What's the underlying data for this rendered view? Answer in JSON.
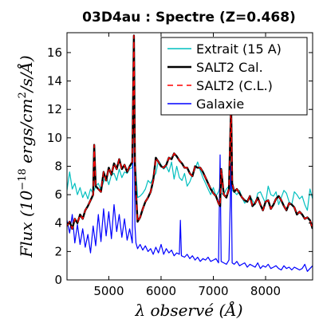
{
  "chart_data": {
    "type": "line",
    "title": "03D4au : Spectre (Z=0.468)",
    "xlabel": "λ observé (Å)",
    "ylabel": "Flux (10^-18 ergs/cm²/s/Å)",
    "ylabel_parts": {
      "pre": "Flux (10",
      "exp": "−18",
      "post": " ergs/cm",
      "exp2": "2",
      "post2": "/s/Å)"
    },
    "xlim": [
      4200,
      8900
    ],
    "ylim": [
      0,
      17.4
    ],
    "xticks": [
      5000,
      6000,
      7000,
      8000
    ],
    "yticks": [
      0,
      2,
      4,
      6,
      8,
      10,
      12,
      14,
      16
    ],
    "legend_position": "top-right",
    "series": [
      {
        "name": "Extrait (15 A)",
        "color": "#00bfbf",
        "style": "solid",
        "x": [
          4200,
          4250,
          4300,
          4350,
          4400,
          4450,
          4500,
          4550,
          4600,
          4650,
          4700,
          4750,
          4800,
          4850,
          4900,
          4950,
          5000,
          5050,
          5100,
          5150,
          5200,
          5250,
          5300,
          5350,
          5400,
          5450,
          5480,
          5500,
          5520,
          5550,
          5600,
          5650,
          5700,
          5750,
          5800,
          5850,
          5900,
          5950,
          6000,
          6050,
          6100,
          6150,
          6200,
          6250,
          6300,
          6350,
          6400,
          6450,
          6500,
          6550,
          6600,
          6650,
          6700,
          6750,
          6800,
          6850,
          6900,
          6950,
          7000,
          7050,
          7100,
          7130,
          7150,
          7200,
          7250,
          7300,
          7340,
          7360,
          7400,
          7450,
          7500,
          7550,
          7600,
          7650,
          7700,
          7750,
          7800,
          7850,
          7900,
          7950,
          8000,
          8050,
          8100,
          8150,
          8200,
          8250,
          8300,
          8350,
          8400,
          8450,
          8500,
          8550,
          8600,
          8650,
          8700,
          8750,
          8800,
          8850,
          8900
        ],
        "y": [
          6.3,
          7.6,
          6.4,
          6.8,
          6.0,
          6.5,
          5.8,
          6.2,
          5.7,
          6.4,
          6.1,
          6.6,
          6.8,
          6.3,
          6.9,
          7.3,
          6.7,
          7.4,
          7.5,
          7.0,
          7.8,
          7.2,
          7.6,
          7.5,
          7.8,
          7.9,
          16.5,
          8.2,
          7.6,
          5.8,
          5.9,
          6.1,
          6.4,
          7.0,
          6.8,
          7.2,
          7.5,
          8.4,
          8.1,
          7.8,
          8.0,
          7.6,
          8.3,
          7.1,
          8.0,
          7.2,
          7.0,
          7.5,
          6.6,
          6.9,
          7.4,
          7.8,
          8.3,
          7.7,
          7.2,
          6.8,
          6.4,
          6.0,
          6.5,
          5.9,
          6.2,
          6.6,
          6.1,
          6.0,
          6.4,
          6.6,
          12.3,
          6.3,
          6.2,
          6.0,
          6.3,
          5.8,
          5.4,
          5.6,
          5.9,
          5.6,
          5.3,
          6.1,
          6.2,
          5.8,
          5.4,
          6.6,
          6.0,
          5.9,
          6.2,
          5.3,
          5.8,
          6.3,
          6.1,
          5.5,
          5.3,
          6.2,
          6.0,
          5.7,
          5.9,
          5.3,
          4.9,
          6.4,
          5.7
        ]
      },
      {
        "name": "SALT2 Cal.",
        "color": "#000000",
        "style": "solid",
        "x": [
          4200,
          4250,
          4300,
          4350,
          4400,
          4450,
          4500,
          4550,
          4600,
          4650,
          4700,
          4720,
          4750,
          4800,
          4850,
          4900,
          4950,
          5000,
          5050,
          5100,
          5150,
          5200,
          5250,
          5300,
          5350,
          5400,
          5450,
          5480,
          5500,
          5520,
          5550,
          5600,
          5650,
          5700,
          5750,
          5800,
          5850,
          5900,
          5950,
          6000,
          6050,
          6100,
          6150,
          6200,
          6250,
          6300,
          6350,
          6400,
          6450,
          6500,
          6550,
          6600,
          6650,
          6700,
          6750,
          6800,
          6850,
          6900,
          6950,
          7000,
          7050,
          7100,
          7130,
          7150,
          7200,
          7250,
          7300,
          7340,
          7360,
          7400,
          7450,
          7500,
          7550,
          7600,
          7650,
          7700,
          7750,
          7800,
          7850,
          7900,
          7950,
          8000,
          8050,
          8100,
          8150,
          8200,
          8250,
          8300,
          8350,
          8400,
          8450,
          8500,
          8550,
          8600,
          8650,
          8700,
          8750,
          8800,
          8850,
          8900
        ],
        "y": [
          3.8,
          4.1,
          3.6,
          4.3,
          4.0,
          4.6,
          4.3,
          4.9,
          5.2,
          5.6,
          6.0,
          9.5,
          6.6,
          6.4,
          6.2,
          7.6,
          7.0,
          7.9,
          7.4,
          8.2,
          7.8,
          8.5,
          7.8,
          8.1,
          7.6,
          8.0,
          8.3,
          17.2,
          8.2,
          6.2,
          4.1,
          4.4,
          5.0,
          5.5,
          5.8,
          6.2,
          7.0,
          8.6,
          8.3,
          8.0,
          7.9,
          8.1,
          8.6,
          8.5,
          8.9,
          8.7,
          8.4,
          8.2,
          7.9,
          7.9,
          7.5,
          7.3,
          8.0,
          7.9,
          7.9,
          7.6,
          7.2,
          6.8,
          6.4,
          6.1,
          5.9,
          5.4,
          5.2,
          7.8,
          6.0,
          5.8,
          6.4,
          12.4,
          6.8,
          6.2,
          6.4,
          6.1,
          5.8,
          5.6,
          5.5,
          5.9,
          5.2,
          5.4,
          5.8,
          5.3,
          4.9,
          5.5,
          5.6,
          5.0,
          5.3,
          5.7,
          5.9,
          5.6,
          5.2,
          4.9,
          5.4,
          5.3,
          5.1,
          4.6,
          4.8,
          4.6,
          4.3,
          4.4,
          4.2,
          3.6
        ]
      },
      {
        "name": "SALT2 (C.L.)",
        "color": "#ff0000",
        "style": "dashed",
        "x": [
          4200,
          4250,
          4300,
          4350,
          4400,
          4450,
          4500,
          4550,
          4600,
          4650,
          4700,
          4720,
          4750,
          4800,
          4850,
          4900,
          4950,
          5000,
          5050,
          5100,
          5150,
          5200,
          5250,
          5300,
          5350,
          5400,
          5450,
          5480,
          5500,
          5520,
          5550,
          5600,
          5650,
          5700,
          5750,
          5800,
          5850,
          5900,
          5950,
          6000,
          6050,
          6100,
          6150,
          6200,
          6250,
          6300,
          6350,
          6400,
          6450,
          6500,
          6550,
          6600,
          6650,
          6700,
          6750,
          6800,
          6850,
          6900,
          6950,
          7000,
          7050,
          7100,
          7130,
          7150,
          7200,
          7250,
          7300,
          7340,
          7360,
          7400,
          7450,
          7500,
          7550,
          7600,
          7650,
          7700,
          7750,
          7800,
          7850,
          7900,
          7950,
          8000,
          8050,
          8100,
          8150,
          8200,
          8250,
          8300,
          8350,
          8400,
          8450,
          8500,
          8550,
          8600,
          8650,
          8700,
          8750,
          8800,
          8850,
          8900
        ],
        "y": [
          3.8,
          4.1,
          3.6,
          4.3,
          4.0,
          4.6,
          4.3,
          4.9,
          5.2,
          5.6,
          6.0,
          9.5,
          6.6,
          6.4,
          6.2,
          7.6,
          7.0,
          7.9,
          7.4,
          8.2,
          7.8,
          8.5,
          7.8,
          8.1,
          7.6,
          8.0,
          8.3,
          17.2,
          8.2,
          6.2,
          4.1,
          4.4,
          5.0,
          5.5,
          5.8,
          6.2,
          7.0,
          8.6,
          8.3,
          8.0,
          7.9,
          8.1,
          8.6,
          8.5,
          8.9,
          8.7,
          8.4,
          8.2,
          7.9,
          7.9,
          7.5,
          7.3,
          8.0,
          7.9,
          7.9,
          7.6,
          7.2,
          6.8,
          6.4,
          6.1,
          5.9,
          5.4,
          5.2,
          7.8,
          6.0,
          5.8,
          6.4,
          12.4,
          6.8,
          6.2,
          6.4,
          6.1,
          5.8,
          5.6,
          5.5,
          5.9,
          5.2,
          5.4,
          5.8,
          5.3,
          4.9,
          5.5,
          5.6,
          5.0,
          5.3,
          5.7,
          5.9,
          5.6,
          5.2,
          4.9,
          5.4,
          5.3,
          5.1,
          4.6,
          4.8,
          4.6,
          4.3,
          4.4,
          4.2,
          3.6
        ]
      },
      {
        "name": "Galaxie",
        "color": "#0000ff",
        "style": "solid",
        "x": [
          4200,
          4250,
          4300,
          4350,
          4400,
          4450,
          4500,
          4550,
          4600,
          4650,
          4700,
          4750,
          4800,
          4850,
          4900,
          4950,
          5000,
          5050,
          5100,
          5150,
          5200,
          5250,
          5300,
          5350,
          5400,
          5450,
          5480,
          5500,
          5520,
          5550,
          5600,
          5650,
          5700,
          5750,
          5800,
          5850,
          5900,
          5950,
          6000,
          6050,
          6100,
          6150,
          6200,
          6250,
          6300,
          6350,
          6370,
          6390,
          6450,
          6500,
          6550,
          6600,
          6650,
          6700,
          6750,
          6800,
          6850,
          6900,
          6950,
          7000,
          7050,
          7100,
          7130,
          7150,
          7200,
          7250,
          7300,
          7340,
          7360,
          7400,
          7450,
          7500,
          7550,
          7600,
          7650,
          7700,
          7750,
          7800,
          7850,
          7900,
          7950,
          8000,
          8050,
          8100,
          8150,
          8200,
          8250,
          8300,
          8350,
          8400,
          8450,
          8500,
          8550,
          8600,
          8650,
          8700,
          8750,
          8800,
          8850,
          8900
        ],
        "y": [
          4.2,
          3.3,
          4.6,
          2.6,
          3.9,
          2.5,
          3.6,
          2.3,
          3.2,
          1.9,
          3.8,
          2.4,
          4.6,
          2.7,
          5.0,
          3.1,
          4.8,
          2.9,
          5.3,
          3.4,
          4.6,
          3.0,
          4.3,
          2.8,
          3.6,
          2.6,
          17.0,
          3.8,
          2.6,
          2.2,
          2.5,
          2.1,
          2.4,
          2.0,
          2.2,
          1.8,
          2.3,
          1.9,
          2.5,
          1.8,
          2.2,
          1.9,
          2.1,
          1.7,
          1.9,
          1.8,
          4.2,
          1.7,
          1.6,
          1.8,
          1.5,
          1.7,
          1.4,
          1.6,
          1.3,
          1.5,
          1.4,
          1.6,
          1.3,
          1.4,
          1.5,
          1.2,
          8.8,
          1.3,
          1.2,
          1.1,
          1.4,
          8.2,
          1.2,
          1.1,
          1.3,
          1.0,
          1.1,
          1.2,
          0.9,
          1.1,
          1.0,
          0.9,
          1.2,
          0.8,
          1.0,
          0.9,
          1.1,
          0.8,
          0.9,
          1.0,
          0.8,
          0.7,
          1.0,
          0.8,
          0.9,
          0.7,
          0.9,
          0.8,
          0.7,
          0.8,
          1.1,
          0.6,
          0.8,
          1.0
        ]
      }
    ]
  }
}
